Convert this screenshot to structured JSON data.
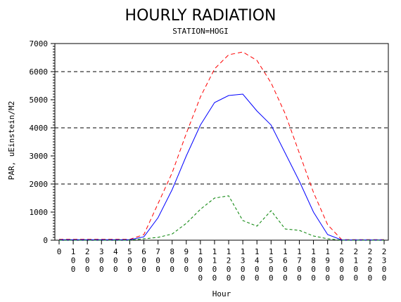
{
  "chart_data": {
    "type": "line",
    "title": "HOURLY RADIATION",
    "subtitle": "STATION=HOGI",
    "xlabel": "Hour",
    "ylabel": "PAR, uEinstein/M2",
    "ylim": [
      0,
      7000
    ],
    "yticks": [
      "0",
      "1000",
      "2000",
      "3000",
      "4000",
      "5000",
      "6000",
      "7000"
    ],
    "reference_lines": [
      2000,
      4000,
      6000
    ],
    "x_ticks": [
      "0",
      "100",
      "200",
      "300",
      "400",
      "500",
      "600",
      "700",
      "800",
      "900",
      "1000",
      "1100",
      "1200",
      "1300",
      "1400",
      "1500",
      "1600",
      "1700",
      "1800",
      "1900",
      "2000",
      "2100",
      "2200",
      "2300"
    ],
    "series": [
      {
        "color": "#ff0000",
        "dash": "6,4",
        "values": [
          30,
          30,
          30,
          30,
          30,
          30,
          200,
          1300,
          2400,
          3800,
          5100,
          6100,
          6600,
          6700,
          6400,
          5600,
          4500,
          3100,
          1700,
          550,
          20,
          20,
          20,
          20
        ]
      },
      {
        "color": "#0000ff",
        "dash": "",
        "values": [
          15,
          15,
          15,
          15,
          15,
          15,
          120,
          800,
          1800,
          3000,
          4100,
          4900,
          5150,
          5200,
          4600,
          4100,
          3100,
          2100,
          1000,
          200,
          10,
          10,
          10,
          10
        ]
      },
      {
        "color": "#008000",
        "dash": "4,3",
        "values": [
          0,
          0,
          0,
          0,
          0,
          0,
          50,
          100,
          220,
          600,
          1100,
          1500,
          1580,
          700,
          500,
          1050,
          400,
          350,
          150,
          50,
          0,
          0,
          0,
          0
        ]
      }
    ]
  }
}
